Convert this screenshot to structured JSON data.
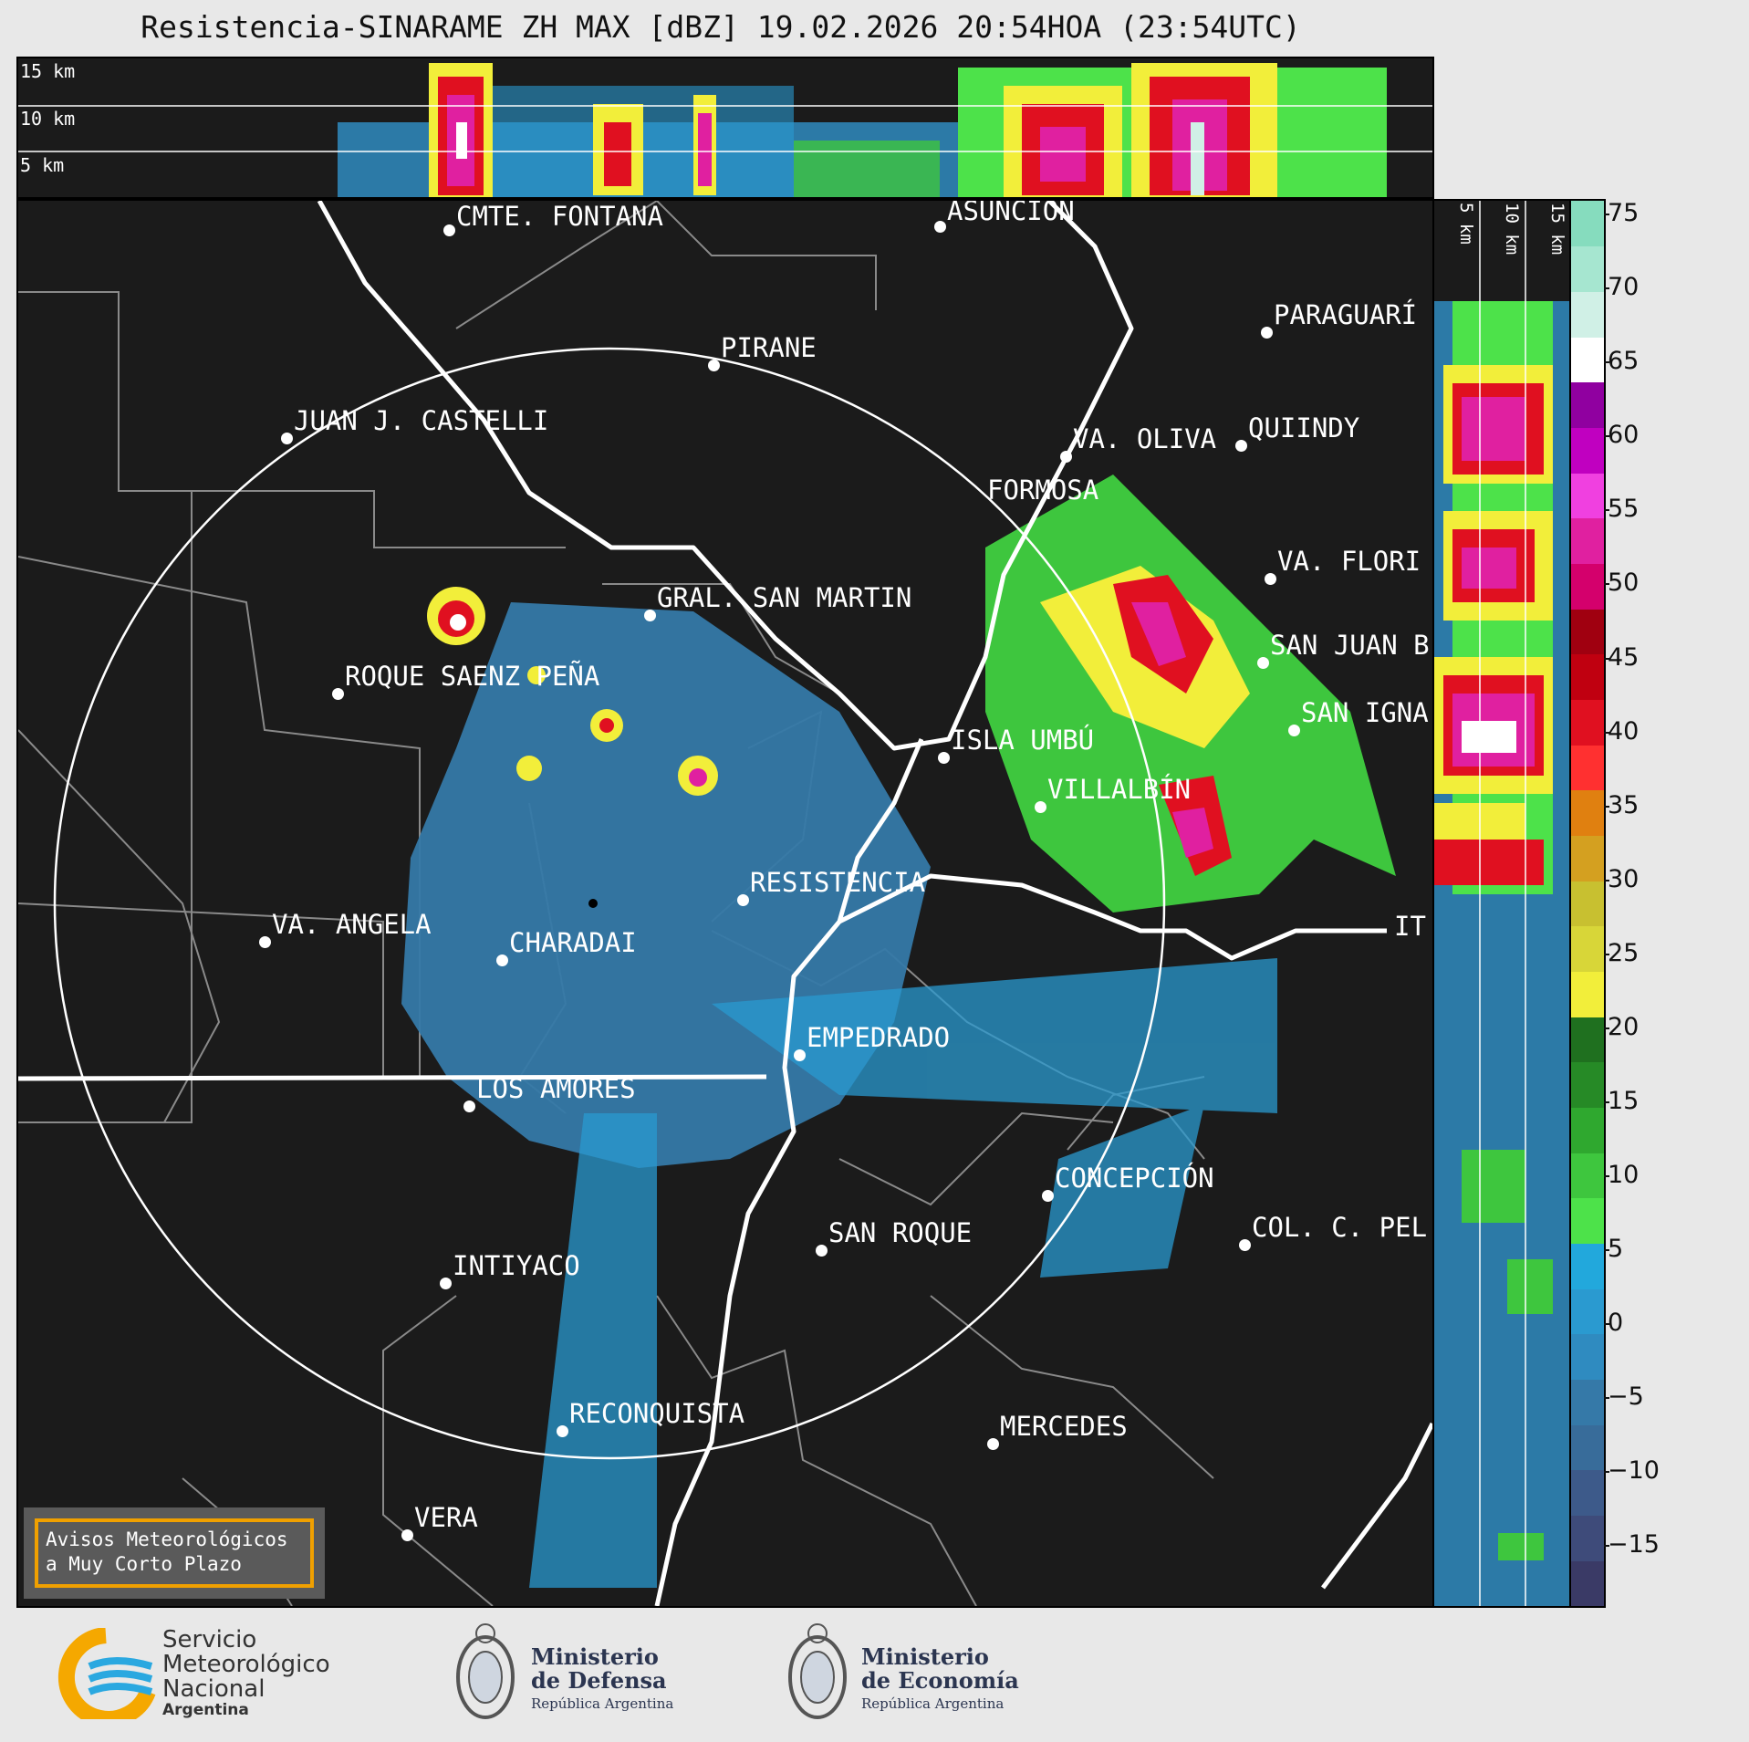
{
  "title": "Resistencia-SINARAME ZH MAX [dBZ] 19.02.2026 20:54HOA (23:54UTC)",
  "top_xsec": {
    "labels": [
      "15 km",
      "10 km",
      "5 km"
    ]
  },
  "right_xsec": {
    "labels": [
      "5 km",
      "10 km",
      "15 km"
    ]
  },
  "cities": [
    {
      "name": "CMTE. FONTANA"
    },
    {
      "name": "ASUNCIÓN"
    },
    {
      "name": "PARAGUARÍ"
    },
    {
      "name": "PIRANE"
    },
    {
      "name": "JUAN J. CASTELLI"
    },
    {
      "name": "QUIINDY"
    },
    {
      "name": "VA. OLIVA"
    },
    {
      "name": "FORMOSA"
    },
    {
      "name": "VA. FLORI"
    },
    {
      "name": "GRAL. SAN MARTIN"
    },
    {
      "name": "SAN JUAN B"
    },
    {
      "name": "ROQUE SAENZ PEÑA"
    },
    {
      "name": "SAN IGNA"
    },
    {
      "name": "ISLA UMBÚ"
    },
    {
      "name": "VILLALBÍN"
    },
    {
      "name": "RESISTENCIA"
    },
    {
      "name": "VA. ANGELA"
    },
    {
      "name": "CHARADAI"
    },
    {
      "name": "IT"
    },
    {
      "name": "EMPEDRADO"
    },
    {
      "name": "LOS AMORES"
    },
    {
      "name": "CONCEPCIÓN"
    },
    {
      "name": "COL. C. PEL"
    },
    {
      "name": "SAN ROQUE"
    },
    {
      "name": "INTIYACO"
    },
    {
      "name": "RECONQUISTA"
    },
    {
      "name": "MERCEDES"
    },
    {
      "name": "VERA"
    }
  ],
  "avisos": {
    "line1": "Avisos Meteorológicos",
    "line2": "a Muy Corto Plazo"
  },
  "colorbar": {
    "unit": "dBZ",
    "ticks": [
      "75",
      "70",
      "65",
      "60",
      "55",
      "50",
      "45",
      "40",
      "35",
      "30",
      "25",
      "20",
      "15",
      "10",
      "5",
      "0",
      "−5",
      "−10",
      "−15"
    ],
    "min": -19,
    "max": 76,
    "colors": [
      "#3a3a66",
      "#3e4b7a",
      "#3d5a8a",
      "#386c9a",
      "#3579a8",
      "#2f8bc0",
      "#2a9ad0",
      "#22a8dc",
      "#4de24a",
      "#3ec63e",
      "#2fa82f",
      "#268a26",
      "#1f701f",
      "#f2ee3a",
      "#d8d638",
      "#c8c030",
      "#d4a020",
      "#e08010",
      "#ff3030",
      "#e01020",
      "#c00010",
      "#a00010",
      "#d4006c",
      "#e020a0",
      "#f040e0",
      "#c000c0",
      "#9000a0",
      "#ffffff",
      "#d0f0e6",
      "#a6e6d0",
      "#86dcbe"
    ],
    "colors_note": ""
  },
  "logos": {
    "smn": {
      "line1": "Servicio",
      "line2": "Meteorológico",
      "line3": "Nacional",
      "line4": "Argentina"
    },
    "defensa": {
      "line1": "Ministerio",
      "line2": "de Defensa",
      "line3": "República Argentina"
    },
    "economia": {
      "line1": "Ministerio",
      "line2": "de Economía",
      "line3": "República Argentina"
    }
  }
}
